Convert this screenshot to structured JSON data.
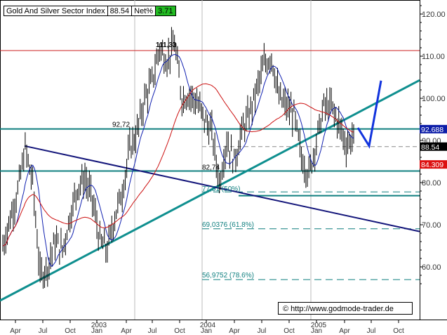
{
  "header": {
    "index_name": "Gold And Silver Sector Index",
    "last_value": "88.54",
    "net_label": "Net%",
    "net_value": "3.71"
  },
  "credit": "© http://www.godmode-trader.de",
  "chart_data": {
    "type": "line",
    "y_axis": {
      "side": "right",
      "ylim": [
        55,
        125
      ],
      "ticks": [
        "60.00",
        "70.00",
        "80.00",
        "90.00",
        "100.00",
        "110.00",
        "120.00"
      ]
    },
    "x_axis": {
      "months": [
        "Apr",
        "Jul",
        "Oct",
        "Jan",
        "Apr",
        "Jul",
        "Oct",
        "Jan",
        "Apr",
        "Jul",
        "Oct",
        "Jan",
        "Apr",
        "Jul",
        "Oct"
      ],
      "years": [
        "2003",
        "2004",
        "2005"
      ]
    },
    "price_labels": [
      {
        "text": "92.688",
        "value": 92.688,
        "color": "#0d1ea8"
      },
      {
        "text": "88.54",
        "value": 88.54,
        "color": "#000000"
      },
      {
        "text": "84.309",
        "value": 84.309,
        "color": "#dd1111"
      }
    ],
    "annotations": [
      {
        "text": "111,33",
        "value": 111.33
      },
      {
        "text": "92,72",
        "value": 92.72
      },
      {
        "text": "82,74",
        "value": 82.74
      },
      {
        "text": "77,51 (50%)",
        "value": 77.51
      },
      {
        "text": "69,0376 (61.8%)",
        "value": 69.0376
      },
      {
        "text": "56,9752 (78.6%)",
        "value": 56.9752
      }
    ],
    "horizontal_levels": [
      111.33,
      92.72,
      82.74,
      76.9
    ],
    "colors": {
      "price": "#000000",
      "ma_short": "#1020b0",
      "ma_long": "#cc1010",
      "trend_up": "#0f8f8f",
      "trend_down": "#13157a",
      "projection": "#1133dd",
      "levels": "#0f7f7f",
      "resistance": "#cc2222"
    }
  }
}
